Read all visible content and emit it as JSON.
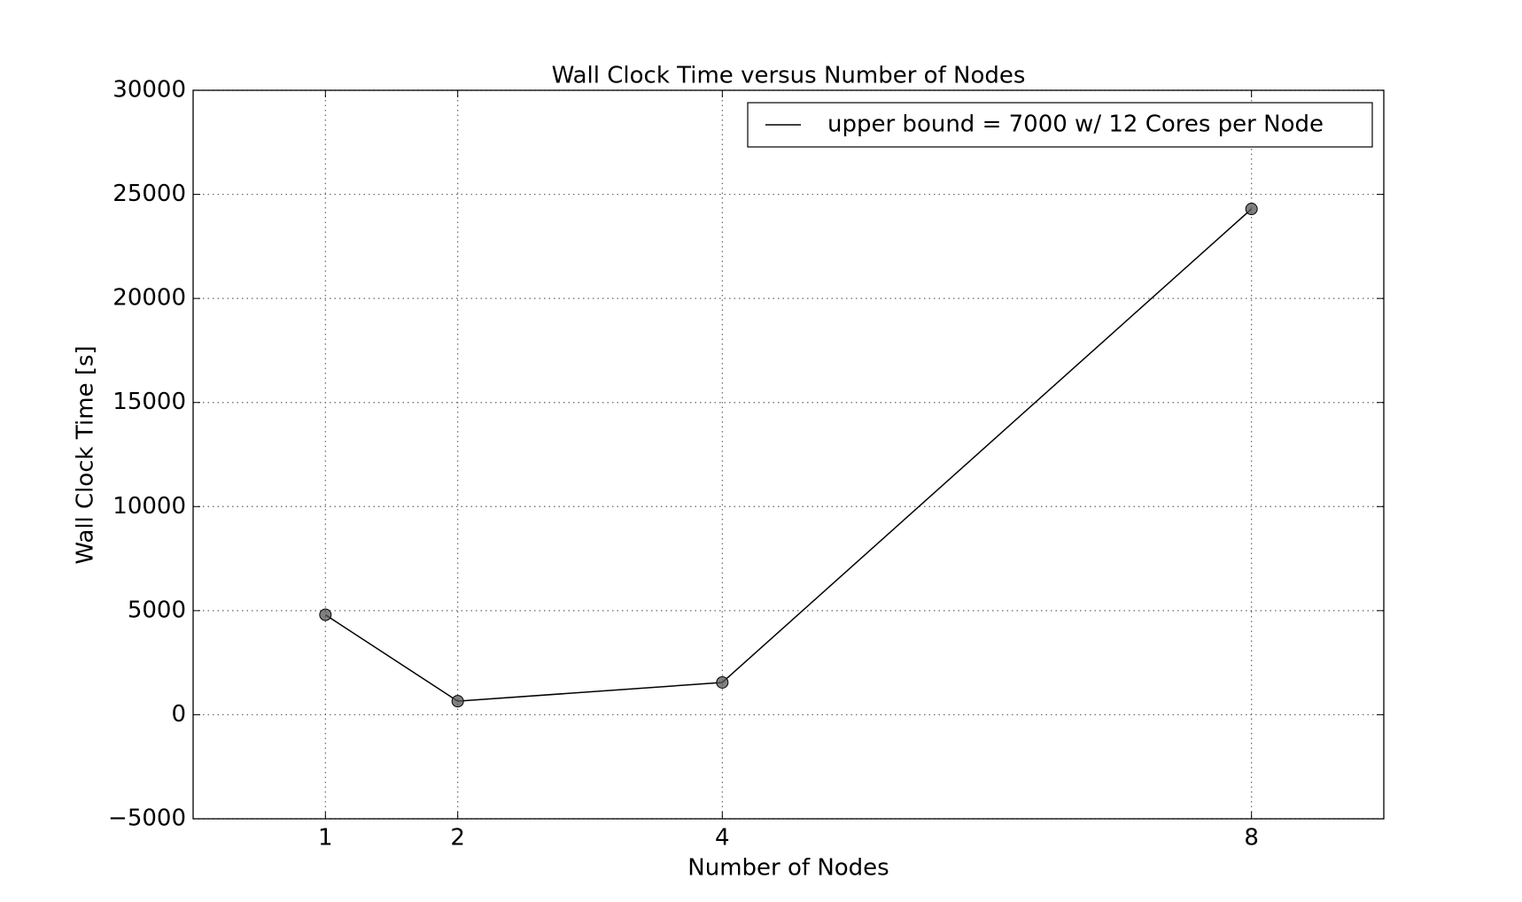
{
  "chart_data": {
    "type": "line",
    "title": "Wall Clock Time versus Number of Nodes",
    "x_label": "Number of Nodes",
    "y_label": "Wall Clock Time [s]",
    "x": [
      1,
      2,
      4,
      8
    ],
    "series": [
      {
        "name": "upper bound = 7000 w/ 12 Cores per Node",
        "color": "#000000",
        "marker_color": "#555555",
        "values": [
          4800,
          650,
          1550,
          24300
        ]
      }
    ],
    "xlim": [
      0,
      9
    ],
    "xticks": [
      1,
      2,
      4,
      8
    ],
    "ylim": [
      -5000,
      30000
    ],
    "yticks": [
      {
        "value": -5000,
        "label": "−5000"
      },
      0,
      5000,
      10000,
      15000,
      20000,
      25000,
      30000
    ],
    "grid": true,
    "legend": "upper right"
  }
}
